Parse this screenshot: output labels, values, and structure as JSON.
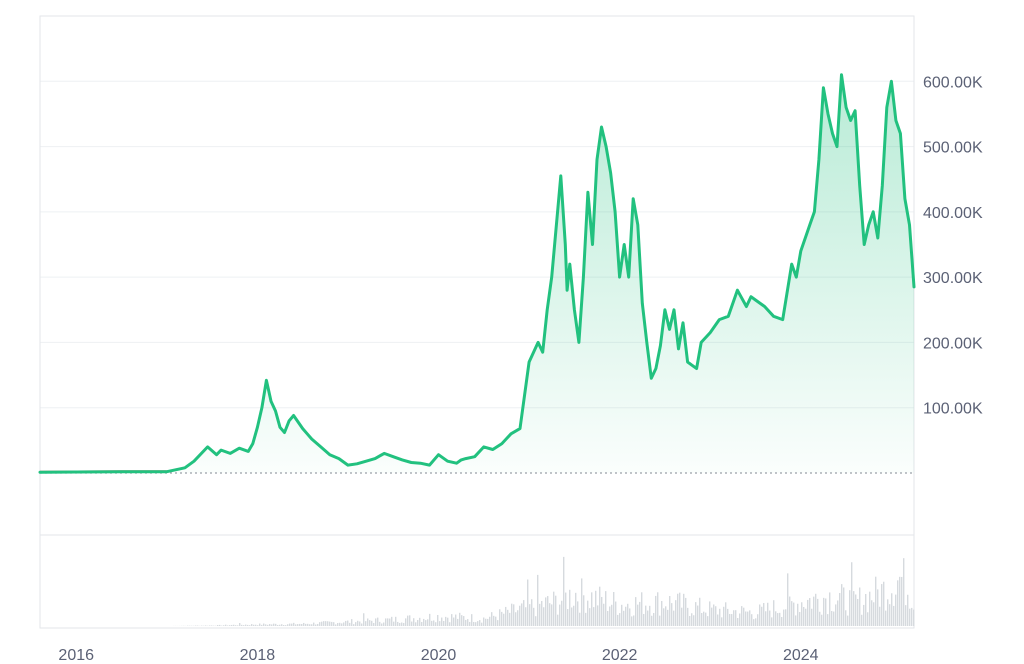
{
  "colors": {
    "line": "#22c17f",
    "area_top": "#22c17f",
    "grid": "#eef0f3",
    "frame": "#e3e6ea",
    "baseline": "#9aa0a8",
    "pre_start_line": "#e05a5a",
    "volume": "#d6dade",
    "tick_text": "#5b6175"
  },
  "chart_data": {
    "type": "area",
    "title": "",
    "xlabel": "",
    "ylabel": "",
    "x_ticks": [
      "2016",
      "2018",
      "2020",
      "2022",
      "2024"
    ],
    "y_ticks": [
      "100.00K",
      "200.00K",
      "300.00K",
      "400.00K",
      "500.00K",
      "600.00K"
    ],
    "ylim": [
      -95000,
      700000
    ],
    "xlim": [
      2015.6,
      2025.25
    ],
    "grid": true,
    "legend": "none",
    "baseline_value": 0,
    "series": [
      {
        "x": [
          2015.6,
          2016.0,
          2016.5,
          2017.0,
          2017.2,
          2017.3,
          2017.45,
          2017.55,
          2017.6,
          2017.7,
          2017.8,
          2017.9,
          2017.95,
          2018.0,
          2018.05,
          2018.1,
          2018.15,
          2018.2,
          2018.25,
          2018.3,
          2018.35,
          2018.4,
          2018.5,
          2018.55,
          2018.6,
          2018.7,
          2018.8,
          2018.9,
          2019.0,
          2019.1,
          2019.2,
          2019.3,
          2019.4,
          2019.5,
          2019.6,
          2019.7,
          2019.8,
          2019.9,
          2020.0,
          2020.1,
          2020.2,
          2020.25,
          2020.3,
          2020.4,
          2020.5,
          2020.6,
          2020.7,
          2020.8,
          2020.9,
          2021.0,
          2021.1,
          2021.15,
          2021.2,
          2021.25,
          2021.35,
          2021.4,
          2021.42,
          2021.45,
          2021.5,
          2021.55,
          2021.6,
          2021.65,
          2021.7,
          2021.75,
          2021.8,
          2021.85,
          2021.9,
          2021.95,
          2022.0,
          2022.05,
          2022.1,
          2022.15,
          2022.2,
          2022.25,
          2022.3,
          2022.35,
          2022.4,
          2022.45,
          2022.5,
          2022.55,
          2022.6,
          2022.65,
          2022.7,
          2022.75,
          2022.8,
          2022.85,
          2022.9,
          2023.0,
          2023.1,
          2023.2,
          2023.3,
          2023.4,
          2023.45,
          2023.5,
          2023.6,
          2023.7,
          2023.8,
          2023.9,
          2023.95,
          2024.0,
          2024.1,
          2024.15,
          2024.2,
          2024.25,
          2024.3,
          2024.35,
          2024.4,
          2024.45,
          2024.5,
          2024.55,
          2024.6,
          2024.65,
          2024.7,
          2024.75,
          2024.8,
          2024.85,
          2024.9,
          2024.95,
          2025.0,
          2025.05,
          2025.1,
          2025.15,
          2025.2,
          2025.25
        ],
        "y": [
          1000,
          1500,
          1800,
          2000,
          8000,
          18000,
          40000,
          28000,
          35000,
          30000,
          38000,
          33000,
          45000,
          70000,
          100000,
          142000,
          110000,
          95000,
          70000,
          62000,
          80000,
          88000,
          68000,
          60000,
          52000,
          40000,
          28000,
          22000,
          12000,
          14000,
          18000,
          22000,
          30000,
          25000,
          20000,
          16000,
          15000,
          12000,
          28000,
          18000,
          15000,
          20000,
          22000,
          25000,
          40000,
          36000,
          45000,
          60000,
          68000,
          170000,
          200000,
          185000,
          250000,
          300000,
          455000,
          350000,
          280000,
          320000,
          250000,
          200000,
          300000,
          430000,
          350000,
          480000,
          530000,
          500000,
          460000,
          400000,
          300000,
          350000,
          300000,
          420000,
          380000,
          260000,
          200000,
          145000,
          160000,
          195000,
          250000,
          220000,
          250000,
          190000,
          230000,
          170000,
          165000,
          160000,
          200000,
          215000,
          235000,
          240000,
          280000,
          255000,
          270000,
          265000,
          255000,
          240000,
          235000,
          320000,
          300000,
          340000,
          380000,
          400000,
          480000,
          590000,
          550000,
          520000,
          500000,
          610000,
          560000,
          540000,
          555000,
          440000,
          350000,
          380000,
          400000,
          360000,
          440000,
          560000,
          600000,
          540000,
          520000,
          420000,
          380000,
          285000
        ]
      }
    ],
    "volume": {
      "x": [
        2016.0,
        2017.0,
        2017.5,
        2018.0,
        2018.5,
        2019.0,
        2019.5,
        2020.0,
        2020.5,
        2021.0,
        2021.3,
        2021.5,
        2022.0,
        2022.5,
        2023.0,
        2023.5,
        2024.0,
        2024.3,
        2024.6,
        2024.9,
        2025.1,
        2025.25
      ],
      "values": [
        0,
        0,
        0.01,
        0.03,
        0.04,
        0.08,
        0.12,
        0.18,
        0.14,
        0.35,
        0.45,
        0.6,
        0.4,
        0.45,
        0.3,
        0.25,
        0.45,
        0.55,
        0.45,
        0.65,
        0.9,
        0.5
      ]
    }
  }
}
